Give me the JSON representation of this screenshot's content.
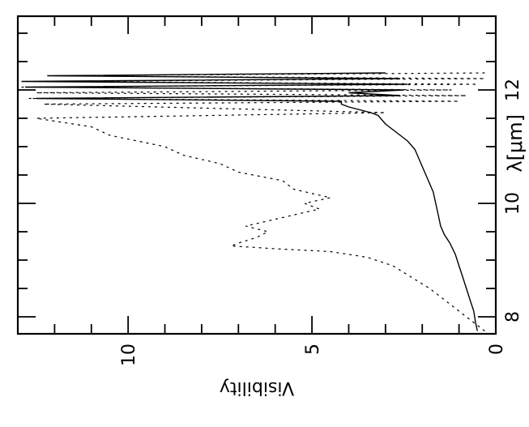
{
  "chart_data": {
    "type": "line",
    "rotation_deg": -90,
    "xlabel": "λ[μm]",
    "ylabel": "Visibility",
    "xlim": [
      7.7,
      13.3
    ],
    "ylim": [
      0,
      13
    ],
    "x_ticks": [
      8,
      10,
      12
    ],
    "y_ticks": [
      0,
      5,
      10
    ],
    "x_tick_labels": [
      "8",
      "10",
      "12"
    ],
    "y_tick_labels": [
      "0",
      "5",
      "10"
    ],
    "grid": false,
    "series": [
      {
        "style": "solid",
        "x": [
          7.75,
          7.9,
          8.1,
          8.3,
          8.5,
          8.7,
          8.9,
          9.1,
          9.3,
          9.45,
          9.6,
          9.75,
          9.9,
          10.05,
          10.2,
          10.35,
          10.5,
          10.65,
          10.8,
          10.95,
          11.1,
          11.25,
          11.4,
          11.55,
          11.6,
          11.7,
          11.75,
          11.8,
          11.85,
          11.9,
          11.95,
          12.0,
          12.05,
          12.1,
          12.15,
          12.2,
          12.25,
          12.3
        ],
        "y": [
          0.5,
          0.55,
          0.6,
          0.7,
          0.8,
          0.9,
          1.0,
          1.1,
          1.25,
          1.4,
          1.5,
          1.55,
          1.6,
          1.65,
          1.7,
          1.8,
          1.9,
          2.0,
          2.1,
          2.2,
          2.4,
          2.7,
          3.0,
          3.2,
          3.4,
          4.0,
          4.2,
          4.2,
          12.5,
          2.6,
          4.0,
          2.5,
          12.8,
          2.4,
          12.9,
          2.6,
          12.2,
          3.0
        ]
      },
      {
        "style": "dotted",
        "x": [
          7.75,
          7.9,
          8.1,
          8.3,
          8.5,
          8.7,
          8.9,
          9.05,
          9.15,
          9.2,
          9.25,
          9.3,
          9.4,
          9.5,
          9.6,
          9.75,
          9.9,
          10.0,
          10.1,
          10.25,
          10.4,
          10.55,
          10.7,
          10.85,
          11.0,
          11.2,
          11.35,
          11.5,
          11.6,
          11.75,
          11.8,
          11.85,
          11.9,
          11.95,
          12.0,
          12.05,
          12.1,
          12.15,
          12.2,
          12.25,
          12.3
        ],
        "y": [
          0.3,
          0.6,
          1.0,
          1.4,
          1.8,
          2.3,
          2.8,
          3.5,
          4.5,
          6.0,
          7.2,
          7.0,
          6.5,
          6.2,
          6.8,
          5.8,
          4.8,
          5.2,
          4.5,
          5.5,
          5.8,
          7.0,
          7.5,
          8.5,
          9.0,
          10.5,
          11.0,
          12.5,
          3.0,
          12.3,
          1.0,
          12.7,
          0.8,
          12.5,
          1.2,
          12.9,
          0.5,
          12.2,
          0.3,
          12.0,
          0.3
        ]
      }
    ]
  }
}
